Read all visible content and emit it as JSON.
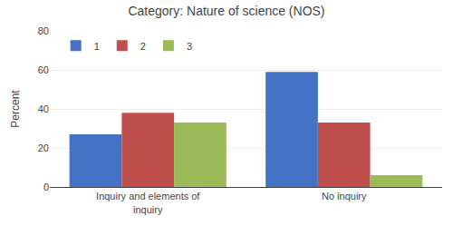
{
  "chart_data": {
    "type": "bar",
    "title": "Category: Nature of science (NOS)",
    "ylabel": "Percent",
    "categories": [
      "Inquiry and elements of\ninquiry",
      "No inquiry"
    ],
    "series": [
      {
        "name": "1",
        "color": "#4472C4",
        "values": [
          27,
          59
        ]
      },
      {
        "name": "2",
        "color": "#C0504D",
        "values": [
          38,
          33
        ]
      },
      {
        "name": "3",
        "color": "#9BBB59",
        "values": [
          33,
          6
        ]
      }
    ],
    "ylim": [
      0,
      80
    ],
    "yticks": [
      0,
      20,
      40,
      60,
      80
    ],
    "grid": true,
    "legend": "upper left"
  }
}
